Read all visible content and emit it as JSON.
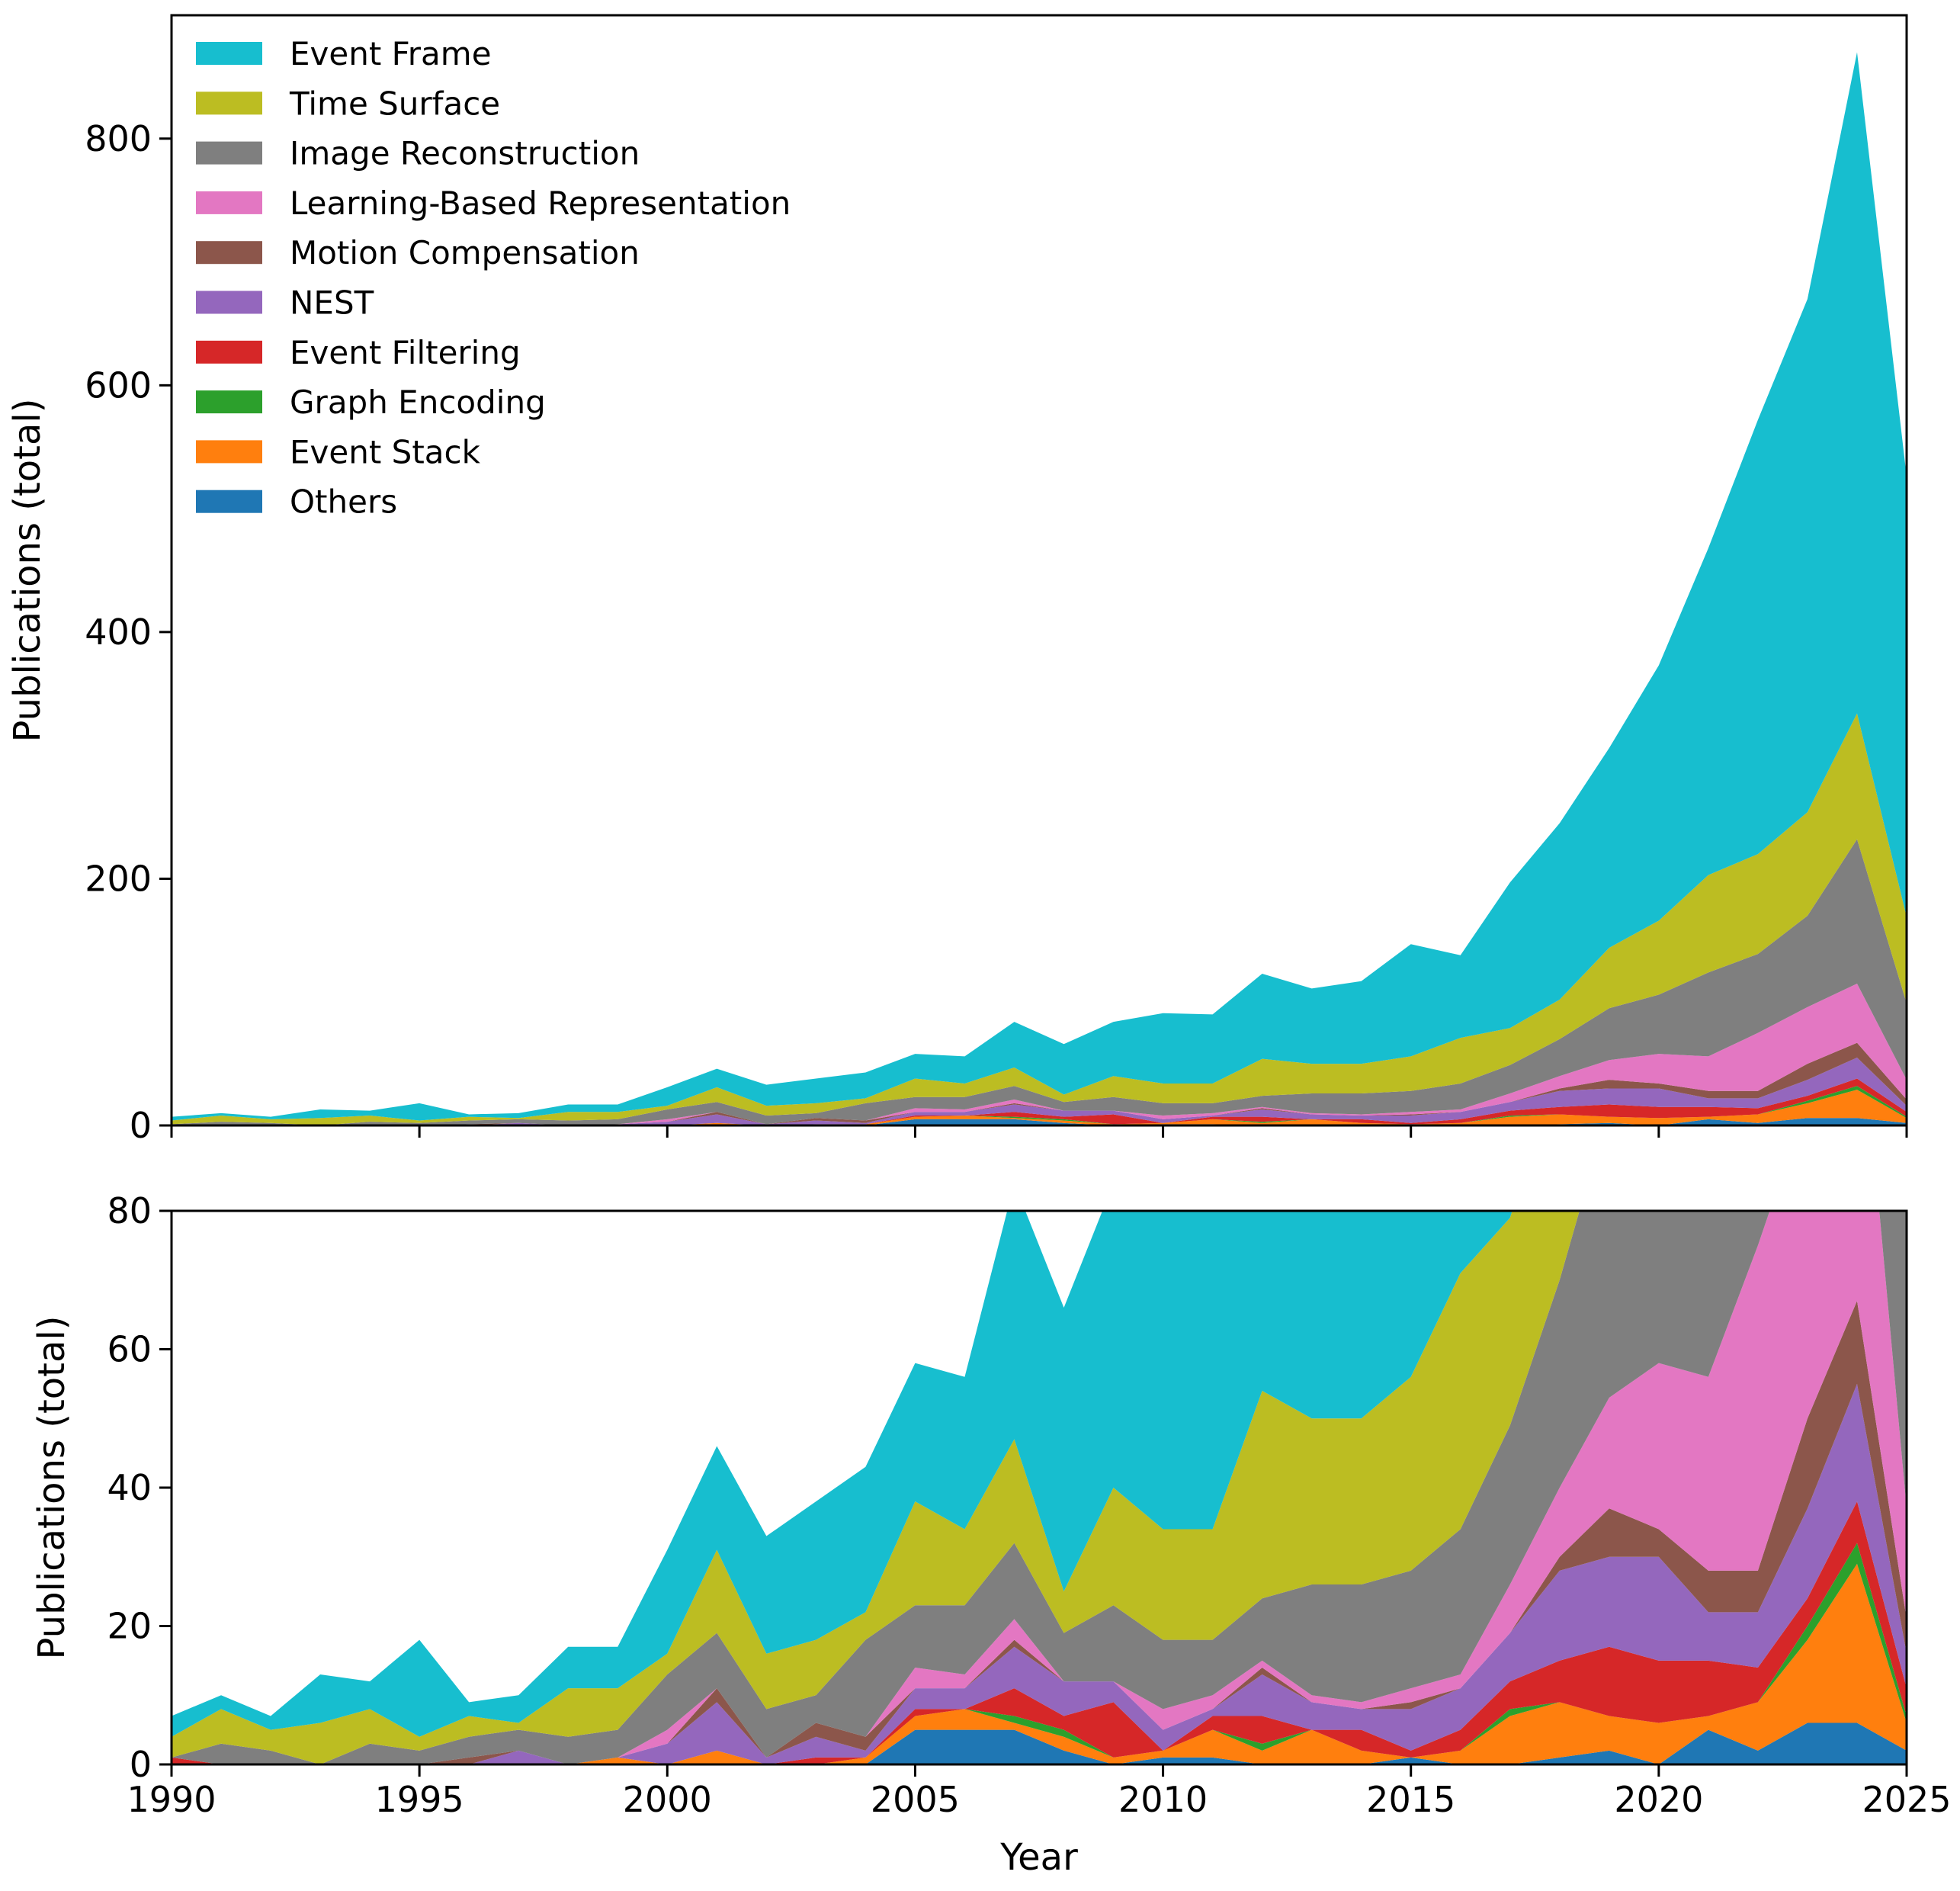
{
  "chart_data": [
    {
      "type": "area",
      "stacked": true,
      "panel": "full-range",
      "xlabel": "",
      "ylabel": "Publications (total)",
      "xlim": [
        1990,
        2025
      ],
      "ylim": [
        0,
        900
      ],
      "yticks": [
        0,
        200,
        400,
        600,
        800
      ],
      "legend_position": "top-left",
      "grid": false
    },
    {
      "type": "area",
      "stacked": true,
      "panel": "zoomed",
      "xlabel": "Year",
      "ylabel": "Publications (total)",
      "xlim": [
        1990,
        2025
      ],
      "ylim": [
        0,
        80
      ],
      "yticks": [
        0,
        20,
        40,
        60,
        80
      ],
      "xticks": [
        1990,
        1995,
        2000,
        2005,
        2010,
        2015,
        2020,
        2025
      ],
      "grid": false
    }
  ],
  "series_data": {
    "x": [
      1990,
      1991,
      1992,
      1993,
      1994,
      1995,
      1996,
      1997,
      1998,
      1999,
      2000,
      2001,
      2002,
      2003,
      2004,
      2005,
      2006,
      2007,
      2008,
      2009,
      2010,
      2011,
      2012,
      2013,
      2014,
      2015,
      2016,
      2017,
      2018,
      2019,
      2020,
      2021,
      2022,
      2023,
      2024,
      2025
    ],
    "series": [
      {
        "name": "Others",
        "color": "#1f77b4",
        "values": [
          0,
          0,
          0,
          0,
          0,
          0,
          0,
          0,
          0,
          0,
          0,
          0,
          0,
          0,
          0,
          5,
          5,
          5,
          2,
          0,
          1,
          1,
          0,
          0,
          0,
          1,
          0,
          0,
          1,
          2,
          0,
          5,
          2,
          6,
          6,
          2
        ]
      },
      {
        "name": "Event Stack",
        "color": "#ff7f0e",
        "values": [
          0,
          0,
          0,
          0,
          0,
          0,
          0,
          0,
          0,
          1,
          0,
          2,
          0,
          0,
          1,
          2,
          3,
          1,
          2,
          1,
          1,
          4,
          2,
          5,
          2,
          0,
          2,
          7,
          8,
          5,
          6,
          2,
          7,
          12,
          23,
          4
        ]
      },
      {
        "name": "Graph Encoding",
        "color": "#2ca02c",
        "values": [
          0,
          0,
          0,
          0,
          0,
          0,
          0,
          0,
          0,
          0,
          0,
          0,
          0,
          0,
          0,
          0,
          0,
          1,
          1,
          0,
          0,
          0,
          1,
          0,
          0,
          0,
          0,
          1,
          0,
          0,
          0,
          0,
          0,
          2,
          3,
          1
        ]
      },
      {
        "name": "Event Filtering",
        "color": "#d62728",
        "values": [
          1,
          0,
          0,
          0,
          0,
          0,
          0,
          0,
          0,
          0,
          0,
          0,
          0,
          1,
          0,
          1,
          0,
          4,
          2,
          8,
          0,
          2,
          4,
          0,
          3,
          1,
          3,
          4,
          6,
          10,
          9,
          8,
          5,
          4,
          6,
          4
        ]
      },
      {
        "name": "NEST",
        "color": "#9467bd",
        "values": [
          0,
          0,
          0,
          0,
          0,
          0,
          0,
          2,
          0,
          0,
          3,
          7,
          1,
          3,
          1,
          3,
          3,
          6,
          5,
          3,
          3,
          1,
          6,
          4,
          3,
          6,
          6,
          7,
          13,
          13,
          15,
          7,
          8,
          13,
          17,
          5
        ]
      },
      {
        "name": "Motion Compensation",
        "color": "#8c564b",
        "values": [
          0,
          0,
          0,
          0,
          0,
          0,
          1,
          0,
          0,
          0,
          0,
          2,
          0,
          2,
          2,
          0,
          0,
          1,
          0,
          0,
          0,
          0,
          1,
          0,
          0,
          1,
          0,
          0,
          2,
          7,
          4,
          6,
          6,
          13,
          12,
          5
        ]
      },
      {
        "name": "Learning-Based Representation",
        "color": "#e377c2",
        "values": [
          0,
          0,
          0,
          0,
          0,
          0,
          0,
          0,
          0,
          0,
          2,
          0,
          0,
          0,
          0,
          3,
          2,
          3,
          0,
          0,
          3,
          2,
          1,
          1,
          1,
          2,
          2,
          7,
          10,
          16,
          24,
          28,
          47,
          46,
          48,
          16
        ]
      },
      {
        "name": "Image Reconstruction",
        "color": "#7f7f7f",
        "values": [
          0,
          3,
          2,
          0,
          3,
          2,
          3,
          3,
          4,
          4,
          8,
          8,
          7,
          4,
          14,
          9,
          10,
          11,
          7,
          11,
          10,
          8,
          9,
          16,
          17,
          17,
          21,
          23,
          30,
          42,
          48,
          68,
          64,
          74,
          117,
          62
        ]
      },
      {
        "name": "Time Surface",
        "color": "#bcbd22",
        "values": [
          3,
          5,
          3,
          6,
          5,
          2,
          3,
          1,
          7,
          6,
          3,
          12,
          8,
          8,
          4,
          15,
          11,
          15,
          6,
          17,
          16,
          16,
          30,
          24,
          24,
          28,
          37,
          30,
          32,
          49,
          60,
          79,
          81,
          84,
          102,
          70
        ]
      },
      {
        "name": "Event Frame",
        "color": "#17becf",
        "values": [
          3,
          2,
          2,
          7,
          4,
          14,
          2,
          4,
          6,
          6,
          15,
          15,
          17,
          20,
          21,
          20,
          22,
          37,
          41,
          44,
          57,
          56,
          69,
          61,
          67,
          91,
          67,
          118,
          143,
          162,
          207,
          265,
          352,
          416,
          536,
          357
        ]
      }
    ],
    "legend_order": [
      "Event Frame",
      "Time Surface",
      "Image Reconstruction",
      "Learning-Based Representation",
      "Motion Compensation",
      "NEST",
      "Event Filtering",
      "Graph Encoding",
      "Event Stack",
      "Others"
    ]
  }
}
